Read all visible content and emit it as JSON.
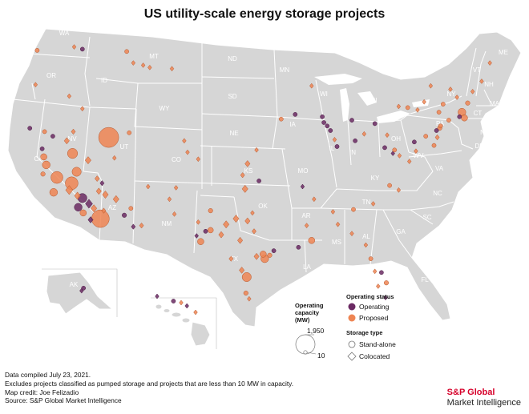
{
  "title": "US utility-scale energy storage projects",
  "colors": {
    "land": "#d6d6d6",
    "border": "#ffffff",
    "operating": "#6b2a63",
    "proposed": "#ee8553",
    "marker_stroke": "#b3572d"
  },
  "state_labels": [
    "WA",
    "OR",
    "ID",
    "MT",
    "ND",
    "SD",
    "WY",
    "NE",
    "MN",
    "WI",
    "MI",
    "IA",
    "IL",
    "OH",
    "PA",
    "NY",
    "VT",
    "NH",
    "ME",
    "MA",
    "CT",
    "NJ",
    "DE",
    "MD",
    "VA",
    "WV",
    "KY",
    "IN",
    "MO",
    "KS",
    "CO",
    "UT",
    "NV",
    "CA",
    "AZ",
    "NM",
    "TX",
    "OK",
    "AR",
    "LA",
    "MS",
    "AL",
    "GA",
    "FL",
    "SC",
    "NC",
    "TN",
    "AK",
    "HI"
  ],
  "legend": {
    "capacity_heading": [
      "Operating",
      "capacity",
      "(MW)"
    ],
    "capacity_max": "1,950",
    "capacity_min": "10",
    "status_heading": "Operating status",
    "status_operating": "Operating",
    "status_proposed": "Proposed",
    "type_heading": "Storage type",
    "type_standalone": "Stand-alone",
    "type_colocated": "Colocated"
  },
  "projects": [
    {
      "s": "c",
      "st": "p",
      "mw": 60,
      "lon": -122.9,
      "lat": 47.6
    },
    {
      "s": "c",
      "st": "o",
      "mw": 20,
      "lon": -117.4,
      "lat": 47.7
    },
    {
      "s": "d",
      "st": "p",
      "mw": 30,
      "lon": -118.4,
      "lat": 47.9
    },
    {
      "s": "d",
      "st": "p",
      "mw": 40,
      "lon": -123.1,
      "lat": 44.6
    },
    {
      "s": "d",
      "st": "p",
      "mw": 50,
      "lon": -119.0,
      "lat": 43.6
    },
    {
      "s": "d",
      "st": "p",
      "mw": 40,
      "lon": -117.4,
      "lat": 42.5
    },
    {
      "s": "c",
      "st": "p",
      "mw": 40,
      "lon": -112.0,
      "lat": 47.5
    },
    {
      "s": "d",
      "st": "p",
      "mw": 30,
      "lon": -111.2,
      "lat": 46.5
    },
    {
      "s": "d",
      "st": "p",
      "mw": 25,
      "lon": -110.0,
      "lat": 46.3
    },
    {
      "s": "d",
      "st": "p",
      "mw": 25,
      "lon": -109.2,
      "lat": 46.1
    },
    {
      "s": "d",
      "st": "p",
      "mw": 30,
      "lon": -106.5,
      "lat": 46.0
    },
    {
      "s": "d",
      "st": "p",
      "mw": 30,
      "lon": -113.5,
      "lat": 38.2
    },
    {
      "s": "c",
      "st": "p",
      "mw": 1950,
      "lon": -114.2,
      "lat": 40.0
    },
    {
      "s": "d",
      "st": "p",
      "mw": 100,
      "lon": -118.5,
      "lat": 40.5
    },
    {
      "s": "d",
      "st": "p",
      "mw": 150,
      "lon": -119.3,
      "lat": 39.7
    },
    {
      "s": "c",
      "st": "p",
      "mw": 500,
      "lon": -118.6,
      "lat": 38.6
    },
    {
      "s": "d",
      "st": "p",
      "mw": 200,
      "lon": -116.7,
      "lat": 38.0
    },
    {
      "s": "c",
      "st": "p",
      "mw": 400,
      "lon": -118.1,
      "lat": 37.0
    },
    {
      "s": "d",
      "st": "p",
      "mw": 120,
      "lon": -115.6,
      "lat": 36.4
    },
    {
      "s": "d",
      "st": "o",
      "mw": 100,
      "lon": -115.0,
      "lat": 36.0
    },
    {
      "s": "d",
      "st": "p",
      "mw": 150,
      "lon": -115.4,
      "lat": 35.3
    },
    {
      "s": "c",
      "st": "p",
      "mw": 800,
      "lon": -118.7,
      "lat": 36.0
    },
    {
      "s": "c",
      "st": "p",
      "mw": 300,
      "lon": -121.8,
      "lat": 37.6
    },
    {
      "s": "c",
      "st": "p",
      "mw": 200,
      "lon": -122.1,
      "lat": 38.3
    },
    {
      "s": "c",
      "st": "o",
      "mw": 80,
      "lon": -122.3,
      "lat": 39.0
    },
    {
      "s": "c",
      "st": "p",
      "mw": 100,
      "lon": -122.2,
      "lat": 36.8
    },
    {
      "s": "c",
      "st": "p",
      "mw": 700,
      "lon": -120.5,
      "lat": 36.5
    },
    {
      "s": "c",
      "st": "p",
      "mw": 300,
      "lon": -120.9,
      "lat": 35.2
    },
    {
      "s": "d",
      "st": "p",
      "mw": 300,
      "lon": -119.0,
      "lat": 35.4
    },
    {
      "s": "d",
      "st": "p",
      "mw": 200,
      "lon": -118.0,
      "lat": 34.9
    },
    {
      "s": "c",
      "st": "o",
      "mw": 400,
      "lon": -117.4,
      "lat": 34.7
    },
    {
      "s": "d",
      "st": "o",
      "mw": 300,
      "lon": -116.6,
      "lat": 34.2
    },
    {
      "s": "d",
      "st": "p",
      "mw": 200,
      "lon": -116.0,
      "lat": 33.8
    },
    {
      "s": "c",
      "st": "p",
      "mw": 1500,
      "lon": -115.2,
      "lat": 32.9
    },
    {
      "s": "c",
      "st": "o",
      "mw": 300,
      "lon": -117.9,
      "lat": 33.9
    },
    {
      "s": "c",
      "st": "p",
      "mw": 200,
      "lon": -117.3,
      "lat": 33.4
    },
    {
      "s": "d",
      "st": "o",
      "mw": 150,
      "lon": -116.4,
      "lat": 32.8
    },
    {
      "s": "d",
      "st": "p",
      "mw": 100,
      "lon": -114.8,
      "lat": 33.6
    },
    {
      "s": "c",
      "st": "o",
      "mw": 60,
      "lon": -123.8,
      "lat": 40.8
    },
    {
      "s": "c",
      "st": "p",
      "mw": 80,
      "lon": -122.0,
      "lat": 40.5
    },
    {
      "s": "c",
      "st": "o",
      "mw": 40,
      "lon": -121.0,
      "lat": 40.1
    },
    {
      "s": "d",
      "st": "p",
      "mw": 200,
      "lon": -114.6,
      "lat": 35.0
    },
    {
      "s": "d",
      "st": "p",
      "mw": 200,
      "lon": -113.3,
      "lat": 34.6
    },
    {
      "s": "c",
      "st": "o",
      "mw": 100,
      "lon": -112.3,
      "lat": 33.2
    },
    {
      "s": "d",
      "st": "o",
      "mw": 100,
      "lon": -111.2,
      "lat": 32.2
    },
    {
      "s": "d",
      "st": "p",
      "mw": 100,
      "lon": -110.2,
      "lat": 32.3
    },
    {
      "s": "c",
      "st": "p",
      "mw": 60,
      "lon": -111.5,
      "lat": 33.8
    },
    {
      "s": "d",
      "st": "p",
      "mw": 60,
      "lon": -109.4,
      "lat": 35.7
    },
    {
      "s": "c",
      "st": "p",
      "mw": 40,
      "lon": -111.7,
      "lat": 40.4
    },
    {
      "s": "d",
      "st": "p",
      "mw": 80,
      "lon": -105.0,
      "lat": 39.7
    },
    {
      "s": "d",
      "st": "p",
      "mw": 80,
      "lon": -104.6,
      "lat": 38.7
    },
    {
      "s": "d",
      "st": "p",
      "mw": 60,
      "lon": -103.3,
      "lat": 38.1
    },
    {
      "s": "d",
      "st": "p",
      "mw": 60,
      "lon": -106.8,
      "lat": 34.6
    },
    {
      "s": "d",
      "st": "p",
      "mw": 60,
      "lon": -106.2,
      "lat": 33.3
    },
    {
      "s": "d",
      "st": "p",
      "mw": 60,
      "lon": -103.3,
      "lat": 32.6
    },
    {
      "s": "d",
      "st": "p",
      "mw": 40,
      "lon": -106.0,
      "lat": 35.6
    },
    {
      "s": "c",
      "st": "p",
      "mw": 100,
      "lon": -101.8,
      "lat": 33.6
    },
    {
      "s": "d",
      "st": "p",
      "mw": 200,
      "lon": -98.7,
      "lat": 32.9
    },
    {
      "s": "d",
      "st": "p",
      "mw": 200,
      "lon": -99.9,
      "lat": 32.4
    },
    {
      "s": "d",
      "st": "p",
      "mw": 150,
      "lon": -100.5,
      "lat": 31.5
    },
    {
      "s": "d",
      "st": "p",
      "mw": 150,
      "lon": -98.2,
      "lat": 31.0
    },
    {
      "s": "d",
      "st": "p",
      "mw": 150,
      "lon": -97.3,
      "lat": 32.7
    },
    {
      "s": "d",
      "st": "p",
      "mw": 100,
      "lon": -96.5,
      "lat": 31.8
    },
    {
      "s": "d",
      "st": "o",
      "mw": 80,
      "lon": -103.5,
      "lat": 31.4
    },
    {
      "s": "c",
      "st": "p",
      "mw": 200,
      "lon": -103.0,
      "lat": 30.9
    },
    {
      "s": "c",
      "st": "p",
      "mw": 150,
      "lon": -101.8,
      "lat": 31.9
    },
    {
      "s": "c",
      "st": "o",
      "mw": 60,
      "lon": -102.4,
      "lat": 31.8
    },
    {
      "s": "d",
      "st": "p",
      "mw": 100,
      "lon": -99.3,
      "lat": 29.4
    },
    {
      "s": "d",
      "st": "p",
      "mw": 150,
      "lon": -98.0,
      "lat": 28.4
    },
    {
      "s": "c",
      "st": "p",
      "mw": 400,
      "lon": -97.4,
      "lat": 27.8
    },
    {
      "s": "c",
      "st": "p",
      "mw": 100,
      "lon": -97.5,
      "lat": 26.4
    },
    {
      "s": "d",
      "st": "p",
      "mw": 80,
      "lon": -97.1,
      "lat": 25.9
    },
    {
      "s": "c",
      "st": "p",
      "mw": 200,
      "lon": -95.4,
      "lat": 29.8
    },
    {
      "s": "c",
      "st": "p",
      "mw": 300,
      "lon": -95.2,
      "lat": 29.4
    },
    {
      "s": "d",
      "st": "p",
      "mw": 150,
      "lon": -96.2,
      "lat": 29.6
    },
    {
      "s": "c",
      "st": "o",
      "mw": 60,
      "lon": -94.1,
      "lat": 30.1
    },
    {
      "s": "c",
      "st": "p",
      "mw": 100,
      "lon": -94.6,
      "lat": 29.7
    },
    {
      "s": "d",
      "st": "p",
      "mw": 80,
      "lon": -96.7,
      "lat": 33.4
    },
    {
      "s": "d",
      "st": "p",
      "mw": 200,
      "lon": -97.6,
      "lat": 35.5
    },
    {
      "s": "d",
      "st": "p",
      "mw": 100,
      "lon": -97.9,
      "lat": 36.7
    },
    {
      "s": "c",
      "st": "o",
      "mw": 30,
      "lon": -95.9,
      "lat": 36.2
    },
    {
      "s": "d",
      "st": "p",
      "mw": 150,
      "lon": -97.3,
      "lat": 37.7
    },
    {
      "s": "d",
      "st": "p",
      "mw": 60,
      "lon": -96.2,
      "lat": 38.9
    },
    {
      "s": "c",
      "st": "p",
      "mw": 60,
      "lon": -93.2,
      "lat": 41.6
    },
    {
      "s": "c",
      "st": "o",
      "mw": 30,
      "lon": -91.5,
      "lat": 42.0
    },
    {
      "s": "d",
      "st": "p",
      "mw": 60,
      "lon": -89.5,
      "lat": 44.5
    },
    {
      "s": "c",
      "st": "o",
      "mw": 40,
      "lon": -88.2,
      "lat": 41.8
    },
    {
      "s": "c",
      "st": "o",
      "mw": 40,
      "lon": -88.0,
      "lat": 41.3
    },
    {
      "s": "c",
      "st": "o",
      "mw": 40,
      "lon": -87.6,
      "lat": 41.0
    },
    {
      "s": "c",
      "st": "o",
      "mw": 60,
      "lon": -87.2,
      "lat": 40.6
    },
    {
      "s": "d",
      "st": "p",
      "mw": 60,
      "lon": -86.7,
      "lat": 39.8
    },
    {
      "s": "c",
      "st": "o",
      "mw": 30,
      "lon": -86.4,
      "lat": 39.2
    },
    {
      "s": "c",
      "st": "o",
      "mw": 40,
      "lon": -84.2,
      "lat": 39.7
    },
    {
      "s": "d",
      "st": "p",
      "mw": 40,
      "lon": -83.1,
      "lat": 40.3
    },
    {
      "s": "c",
      "st": "o",
      "mw": 30,
      "lon": -84.6,
      "lat": 41.5
    },
    {
      "s": "c",
      "st": "o",
      "mw": 30,
      "lon": -81.8,
      "lat": 41.2
    },
    {
      "s": "d",
      "st": "p",
      "mw": 60,
      "lon": -80.3,
      "lat": 40.2
    },
    {
      "s": "c",
      "st": "o",
      "mw": 40,
      "lon": -80.6,
      "lat": 39.1
    },
    {
      "s": "d",
      "st": "o",
      "mw": 80,
      "lon": -79.6,
      "lat": 38.6
    },
    {
      "s": "d",
      "st": "p",
      "mw": 60,
      "lon": -78.8,
      "lat": 38.4
    },
    {
      "s": "d",
      "st": "p",
      "mw": 80,
      "lon": -77.6,
      "lat": 37.9
    },
    {
      "s": "d",
      "st": "p",
      "mw": 60,
      "lon": -76.8,
      "lat": 38.8
    },
    {
      "s": "c",
      "st": "o",
      "mw": 30,
      "lon": -77.0,
      "lat": 39.6
    },
    {
      "s": "c",
      "st": "p",
      "mw": 40,
      "lon": -75.6,
      "lat": 40.1
    },
    {
      "s": "c",
      "st": "o",
      "mw": 40,
      "lon": -74.3,
      "lat": 40.6
    },
    {
      "s": "c",
      "st": "p",
      "mw": 60,
      "lon": -73.8,
      "lat": 41.0
    },
    {
      "s": "c",
      "st": "p",
      "mw": 100,
      "lon": -73.9,
      "lat": 40.8
    },
    {
      "s": "d",
      "st": "p",
      "mw": 100,
      "lon": -74.2,
      "lat": 40.0
    },
    {
      "s": "c",
      "st": "p",
      "mw": 60,
      "lon": -74.6,
      "lat": 39.3
    },
    {
      "s": "c",
      "st": "p",
      "mw": 80,
      "lon": -72.8,
      "lat": 41.5
    },
    {
      "s": "c",
      "st": "p",
      "mw": 300,
      "lon": -71.2,
      "lat": 42.2
    },
    {
      "s": "c",
      "st": "p",
      "mw": 200,
      "lon": -70.9,
      "lat": 41.7
    },
    {
      "s": "c",
      "st": "o",
      "mw": 40,
      "lon": -71.5,
      "lat": 41.8
    },
    {
      "s": "c",
      "st": "p",
      "mw": 100,
      "lon": -70.5,
      "lat": 43.0
    },
    {
      "s": "d",
      "st": "p",
      "mw": 60,
      "lon": -71.8,
      "lat": 43.5
    },
    {
      "s": "d",
      "st": "p",
      "mw": 60,
      "lon": -72.6,
      "lat": 44.2
    },
    {
      "s": "d",
      "st": "p",
      "mw": 60,
      "lon": -75.8,
      "lat": 43.1
    },
    {
      "s": "d",
      "st": "p",
      "mw": 60,
      "lon": -76.6,
      "lat": 42.4
    },
    {
      "s": "c",
      "st": "p",
      "mw": 80,
      "lon": -77.8,
      "lat": 42.6
    },
    {
      "s": "d",
      "st": "p",
      "mw": 60,
      "lon": -78.9,
      "lat": 42.7
    },
    {
      "s": "d",
      "st": "p",
      "mw": 60,
      "lon": -75.0,
      "lat": 44.5
    },
    {
      "s": "c",
      "st": "p",
      "mw": 60,
      "lon": -73.5,
      "lat": 42.9
    },
    {
      "s": "c",
      "st": "p",
      "mw": 60,
      "lon": -74.0,
      "lat": 42.2
    },
    {
      "s": "d",
      "st": "p",
      "mw": 60,
      "lon": -69.9,
      "lat": 44.0
    },
    {
      "s": "d",
      "st": "p",
      "mw": 40,
      "lon": -68.8,
      "lat": 44.9
    },
    {
      "s": "d",
      "st": "p",
      "mw": 40,
      "lon": -67.8,
      "lat": 46.5
    },
    {
      "s": "c",
      "st": "p",
      "mw": 40,
      "lon": -80.0,
      "lat": 35.8
    },
    {
      "s": "d",
      "st": "p",
      "mw": 40,
      "lon": -78.9,
      "lat": 35.4
    },
    {
      "s": "d",
      "st": "p",
      "mw": 60,
      "lon": -82.0,
      "lat": 34.2
    },
    {
      "s": "c",
      "st": "p",
      "mw": 60,
      "lon": -84.4,
      "lat": 33.7
    },
    {
      "s": "d",
      "st": "p",
      "mw": 40,
      "lon": -84.6,
      "lat": 31.6
    },
    {
      "s": "d",
      "st": "p",
      "mw": 60,
      "lon": -86.3,
      "lat": 32.4
    },
    {
      "s": "d",
      "st": "p",
      "mw": 60,
      "lon": -86.9,
      "lat": 33.5
    },
    {
      "s": "c",
      "st": "p",
      "mw": 200,
      "lon": -89.5,
      "lat": 31.0
    },
    {
      "s": "d",
      "st": "p",
      "mw": 40,
      "lon": -90.1,
      "lat": 32.3
    },
    {
      "s": "d",
      "st": "p",
      "mw": 30,
      "lon": -89.2,
      "lat": 34.6
    },
    {
      "s": "d",
      "st": "o",
      "mw": 40,
      "lon": -90.6,
      "lat": 35.7
    },
    {
      "s": "c",
      "st": "o",
      "mw": 40,
      "lon": -91.1,
      "lat": 30.4
    },
    {
      "s": "d",
      "st": "p",
      "mw": 60,
      "lon": -82.9,
      "lat": 30.6
    },
    {
      "s": "c",
      "st": "p",
      "mw": 80,
      "lon": -82.3,
      "lat": 29.4
    },
    {
      "s": "d",
      "st": "p",
      "mw": 60,
      "lon": -81.8,
      "lat": 28.3
    },
    {
      "s": "c",
      "st": "o",
      "mw": 40,
      "lon": -81.0,
      "lat": 28.2
    },
    {
      "s": "d",
      "st": "p",
      "mw": 60,
      "lon": -81.4,
      "lat": 27.0
    },
    {
      "s": "c",
      "st": "p",
      "mw": 100,
      "lon": -80.4,
      "lat": 27.3
    },
    {
      "s": "d",
      "st": "o",
      "mw": 40,
      "lon": -80.5,
      "lat": 26.0
    },
    {
      "s": "c",
      "st": "p",
      "mw": 40,
      "lon": -79.4,
      "lat": 38.9
    },
    {
      "s": "c",
      "st": "o",
      "mw": 60,
      "lon": -149.9,
      "lat": 61.2
    },
    {
      "s": "d",
      "st": "o",
      "mw": 40,
      "lon": -151.0,
      "lat": 60.4
    },
    {
      "s": "c",
      "st": "o",
      "mw": 40,
      "lon": -157.8,
      "lat": 21.4
    },
    {
      "s": "d",
      "st": "p",
      "mw": 40,
      "lon": -155.5,
      "lat": 20.0
    },
    {
      "s": "d",
      "st": "o",
      "mw": 40,
      "lon": -159.5,
      "lat": 22.0
    },
    {
      "s": "d",
      "st": "o",
      "mw": 40,
      "lon": -156.4,
      "lat": 20.8
    },
    {
      "s": "d",
      "st": "p",
      "mw": 40,
      "lon": -157.0,
      "lat": 21.2
    }
  ],
  "footer": [
    "Data compiled July 23, 2021.",
    "Excludes projects classified as pumped storage and projects that are less than 10 MW in capacity.",
    "Map credit: Joe Felizadio",
    "Source: S&P Global Market Intelligence"
  ],
  "brand": {
    "line1": "S&P Global",
    "line2": "Market Intelligence"
  }
}
